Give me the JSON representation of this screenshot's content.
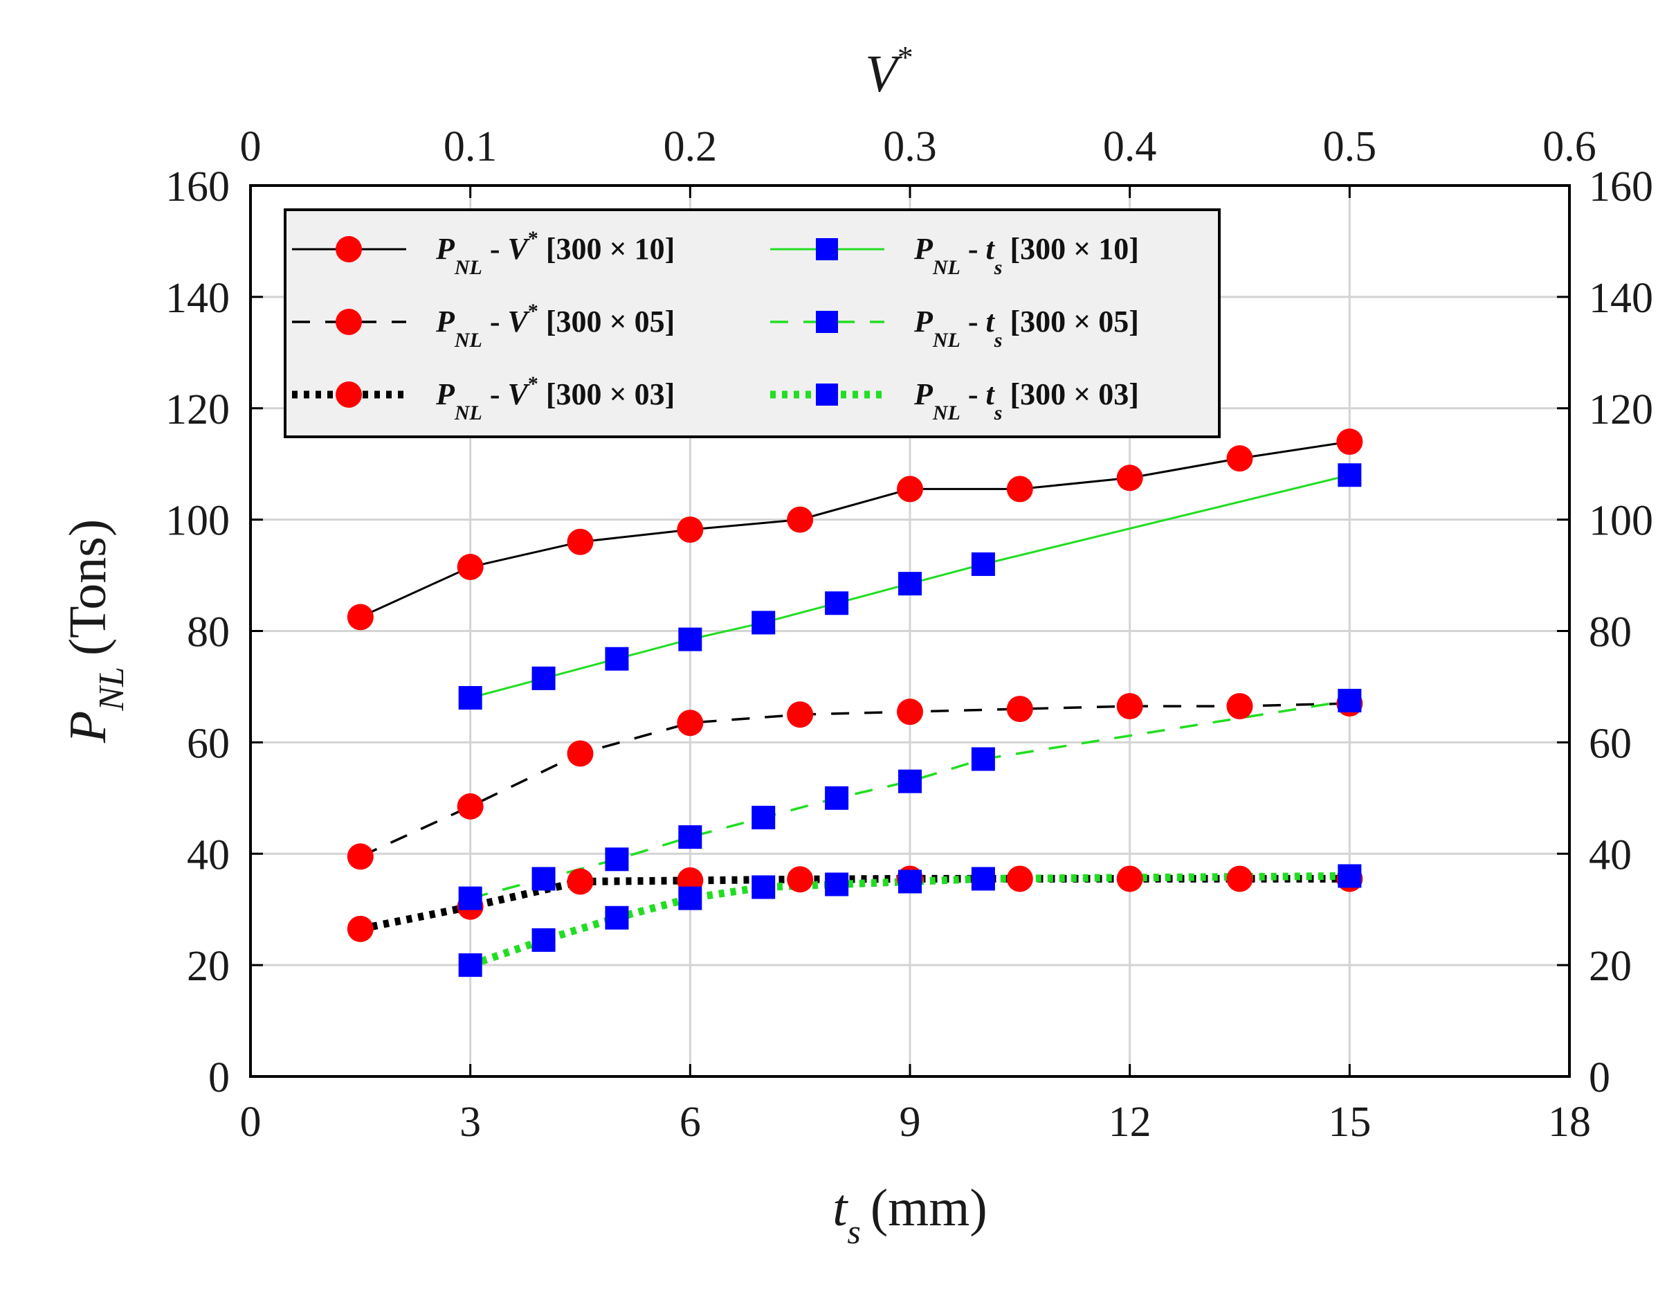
{
  "chart_data": {
    "type": "line",
    "x_label_var": "t",
    "x_label_sub": "s",
    "x_label_unit": "(mm)",
    "y_label_var": "P",
    "y_label_sub": "NL",
    "y_label_unit": "(Tons)",
    "top_label_var": "V",
    "top_label_sup": "*",
    "xlim": [
      0,
      18
    ],
    "x_ticks": [
      0,
      3,
      6,
      9,
      12,
      15,
      18
    ],
    "top_xlim": [
      0,
      0.6
    ],
    "top_ticks": [
      "0",
      "0.1",
      "0.2",
      "0.3",
      "0.4",
      "0.5",
      "0.6"
    ],
    "ylim": [
      0,
      160
    ],
    "y_ticks": [
      0,
      20,
      40,
      60,
      80,
      100,
      120,
      140,
      160
    ],
    "grid": true,
    "legend_position": "top-left",
    "series": [
      {
        "name": "P_NL - V* [300 × 10]",
        "legend_var": "P",
        "legend_sub": "NL",
        "legend_mid": " - ",
        "legend_var2": "V",
        "legend_sup2": "*",
        "legend_sub2": "",
        "legend_tail": " [300 × 10]",
        "axis": "top",
        "color": "#000000",
        "marker": "circle",
        "marker_color": "#ff0000",
        "dash": "solid",
        "x": [
          0.05,
          0.1,
          0.15,
          0.2,
          0.25,
          0.3,
          0.35,
          0.4,
          0.45,
          0.5
        ],
        "values": [
          82.5,
          91.5,
          96,
          98.2,
          100,
          105.5,
          105.5,
          107.5,
          111,
          114
        ]
      },
      {
        "name": "P_NL - V* [300 × 05]",
        "legend_var": "P",
        "legend_sub": "NL",
        "legend_mid": " - ",
        "legend_var2": "V",
        "legend_sup2": "*",
        "legend_sub2": "",
        "legend_tail": " [300 × 05]",
        "axis": "top",
        "color": "#000000",
        "marker": "circle",
        "marker_color": "#ff0000",
        "dash": "dashed",
        "x": [
          0.05,
          0.1,
          0.15,
          0.2,
          0.25,
          0.3,
          0.35,
          0.4,
          0.45,
          0.5
        ],
        "values": [
          39.5,
          48.5,
          58,
          63.5,
          65,
          65.5,
          66,
          66.5,
          66.5,
          67
        ]
      },
      {
        "name": "P_NL - V* [300 × 03]",
        "legend_var": "P",
        "legend_sub": "NL",
        "legend_mid": " - ",
        "legend_var2": "V",
        "legend_sup2": "*",
        "legend_sub2": "",
        "legend_tail": " [300 × 03]",
        "axis": "top",
        "color": "#000000",
        "marker": "circle",
        "marker_color": "#ff0000",
        "dash": "dotted",
        "x": [
          0.05,
          0.1,
          0.15,
          0.2,
          0.25,
          0.3,
          0.35,
          0.4,
          0.45,
          0.5
        ],
        "values": [
          26.5,
          30.5,
          35,
          35.2,
          35.4,
          35.5,
          35.5,
          35.5,
          35.5,
          35.5
        ]
      },
      {
        "name": "P_NL - t_s [300 × 10]",
        "legend_var": "P",
        "legend_sub": "NL",
        "legend_mid": " - ",
        "legend_var2": "t",
        "legend_sup2": "",
        "legend_sub2": "s",
        "legend_tail": " [300 × 10]",
        "axis": "bottom",
        "color": "#22dd22",
        "marker": "square",
        "marker_color": "#0000ff",
        "dash": "solid",
        "x": [
          3,
          4,
          5,
          6,
          7,
          8,
          9,
          10,
          15
        ],
        "values": [
          68,
          71.5,
          75,
          78.5,
          81.5,
          85,
          88.5,
          92,
          108
        ]
      },
      {
        "name": "P_NL - t_s [300 × 05]",
        "legend_var": "P",
        "legend_sub": "NL",
        "legend_mid": " - ",
        "legend_var2": "t",
        "legend_sup2": "",
        "legend_sub2": "s",
        "legend_tail": " [300 × 05]",
        "axis": "bottom",
        "color": "#22dd22",
        "marker": "square",
        "marker_color": "#0000ff",
        "dash": "dashed",
        "x": [
          3,
          4,
          5,
          6,
          7,
          8,
          9,
          10,
          15
        ],
        "values": [
          32,
          35.5,
          39,
          43,
          46.5,
          50,
          53,
          57,
          67.5
        ]
      },
      {
        "name": "P_NL - t_s [300 × 03]",
        "legend_var": "P",
        "legend_sub": "NL",
        "legend_mid": " - ",
        "legend_var2": "t",
        "legend_sup2": "",
        "legend_sub2": "s",
        "legend_tail": " [300 × 03]",
        "axis": "bottom",
        "color": "#22dd22",
        "marker": "square",
        "marker_color": "#0000ff",
        "dash": "dotted",
        "x": [
          3,
          4,
          5,
          6,
          7,
          8,
          9,
          10,
          15
        ],
        "values": [
          20,
          24.5,
          28.5,
          32,
          34,
          34.5,
          35,
          35.5,
          36
        ]
      }
    ]
  }
}
